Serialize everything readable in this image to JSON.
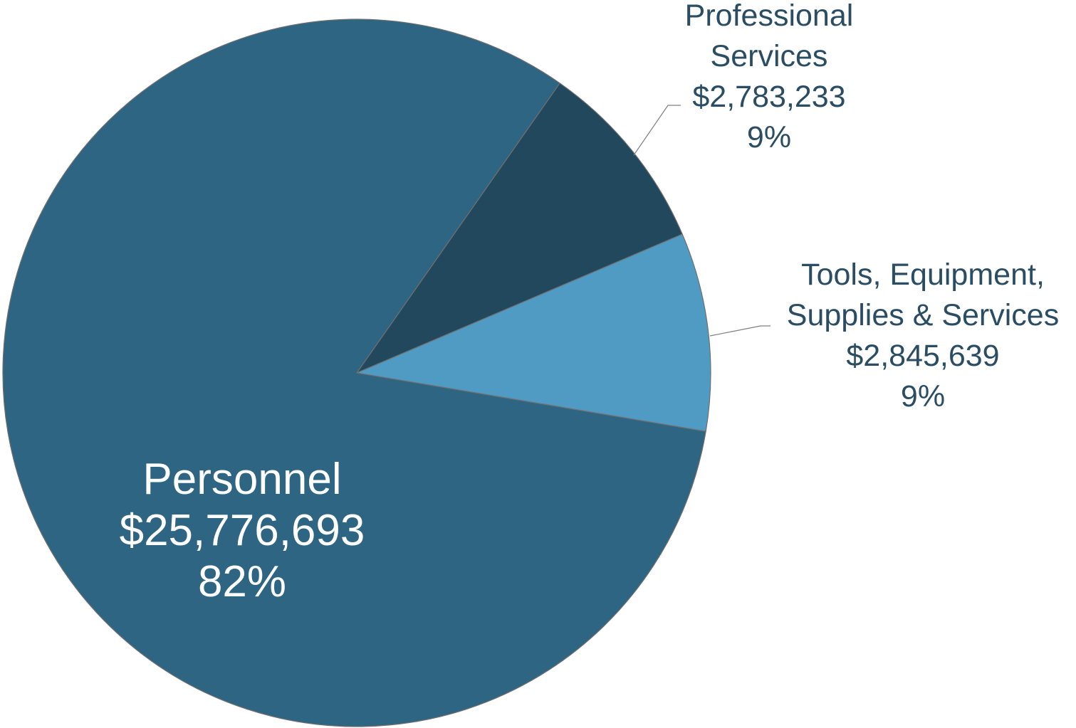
{
  "chart_data": {
    "type": "pie",
    "start_angle_deg": 35.0,
    "direction": "clockwise",
    "slices": [
      {
        "name": "Professional Services",
        "label_lines": [
          "Professional",
          "Services"
        ],
        "value": 2783233,
        "value_label": "$2,783,233",
        "percent_label": "9%",
        "color": "#22485e",
        "label_position": "outside-top-right"
      },
      {
        "name": "Tools, Equipment, Supplies & Services",
        "label_lines": [
          "Tools, Equipment,",
          "Supplies & Services"
        ],
        "value": 2845639,
        "value_label": "$2,845,639",
        "percent_label": "9%",
        "color": "#4f9bc4",
        "label_position": "outside-right"
      },
      {
        "name": "Personnel",
        "label_lines": [
          "Personnel"
        ],
        "value": 25776693,
        "value_label": "$25,776,693",
        "percent_label": "82%",
        "color": "#2e6582",
        "label_position": "inside-lower-left"
      }
    ]
  }
}
